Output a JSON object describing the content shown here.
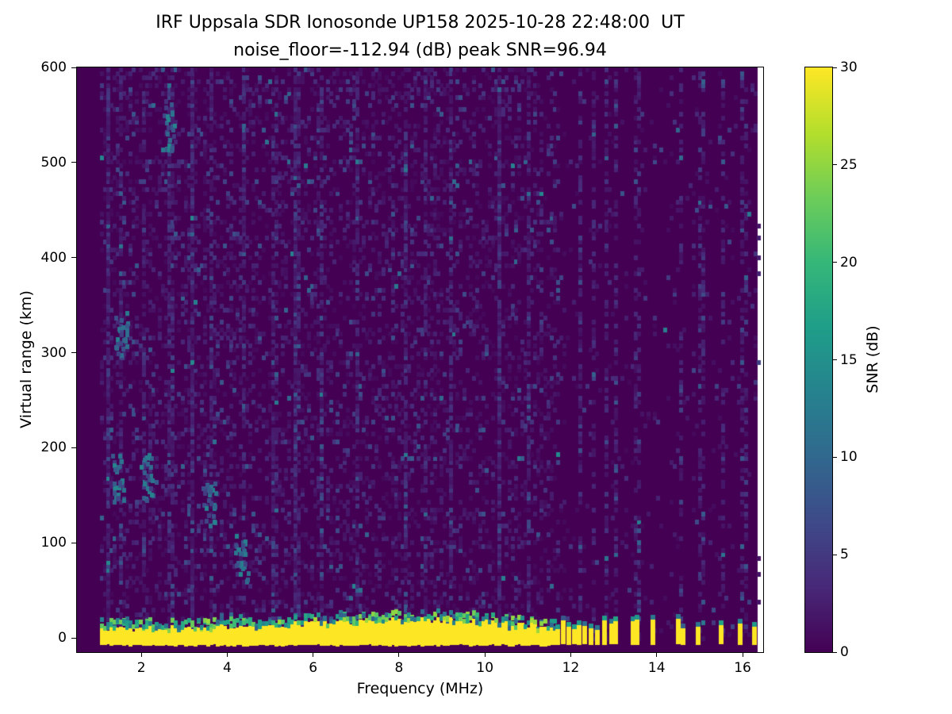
{
  "figure": {
    "title_line1": "IRF Uppsala SDR Ionosonde UP158 2025-10-28 22:48:00  UT",
    "title_line2": "noise_floor=-112.94 (dB) peak SNR=96.94",
    "xlabel": "Frequency (MHz)",
    "ylabel": "Virtual range (km)",
    "colorbar_label": "SNR (dB)"
  },
  "chart_data": {
    "type": "heatmap",
    "title": "IRF Uppsala SDR Ionosonde UP158 2025-10-28 22:48:00  UT",
    "subtitle": "noise_floor=-112.94 (dB) peak SNR=96.94",
    "station": "IRF Uppsala SDR Ionosonde UP158",
    "timestamp_ut": "2025-10-28 22:48:00",
    "noise_floor_db": -112.94,
    "peak_snr_db": 96.94,
    "xlabel": "Frequency (MHz)",
    "ylabel": "Virtual range (km)",
    "x_range_mhz": [
      0.5,
      16.48
    ],
    "y_range_km": [
      -15,
      600
    ],
    "x_ticks": [
      2,
      4,
      6,
      8,
      10,
      12,
      14,
      16
    ],
    "y_ticks": [
      0,
      100,
      200,
      300,
      400,
      500,
      600
    ],
    "colormap": "viridis",
    "grid": false,
    "legend": "colorbar-right",
    "colorbar": {
      "label": "SNR (dB)",
      "range_db": [
        0,
        30
      ],
      "ticks": [
        0,
        5,
        10,
        15,
        20,
        25,
        30
      ]
    },
    "seed": 20251028,
    "features": {
      "data_start_mhz": 1.0,
      "data_end_mhz": 16.35,
      "background_snr_db": 0,
      "ground_echo": {
        "freq_start_mhz": 1.0,
        "freq_end_mhz": 11.62,
        "bottom_km": -7,
        "top_km_base": 8,
        "top_km_bulge": 9,
        "bulge_center_mhz": 8.6,
        "snr_db": 30
      },
      "pulse_freqs_mhz": [
        11.7,
        11.82,
        11.95,
        12.08,
        12.2,
        12.33,
        12.48,
        12.62,
        12.78,
        12.95,
        13.05,
        13.45,
        13.55,
        13.92,
        14.5,
        14.62,
        14.97,
        15.5,
        15.95,
        16.28
      ],
      "pulse_range_km": [
        -7,
        22
      ],
      "noise_speckle": {
        "density": 0.28,
        "density_above_12mhz": 0.05,
        "mean_snr_db": 1.8,
        "max_snr_db": 14
      },
      "vertical_streaks_mhz": [
        1.2,
        1.5,
        2.0,
        2.65,
        3.15,
        3.6,
        4.35,
        5.05,
        5.6,
        6.15,
        7.0,
        8.1,
        8.55,
        9.15,
        10.3,
        11.0,
        12.2,
        12.5,
        12.8,
        13.0,
        13.5,
        14.5,
        15.0,
        15.5,
        16.0
      ],
      "noise_clusters": [
        {
          "freq_mhz": 1.5,
          "range_km": 320
        },
        {
          "freq_mhz": 1.45,
          "range_km": 170
        },
        {
          "freq_mhz": 2.1,
          "range_km": 170
        },
        {
          "freq_mhz": 3.55,
          "range_km": 140
        },
        {
          "freq_mhz": 4.3,
          "range_km": 85
        },
        {
          "freq_mhz": 2.6,
          "range_km": 540
        }
      ]
    }
  }
}
